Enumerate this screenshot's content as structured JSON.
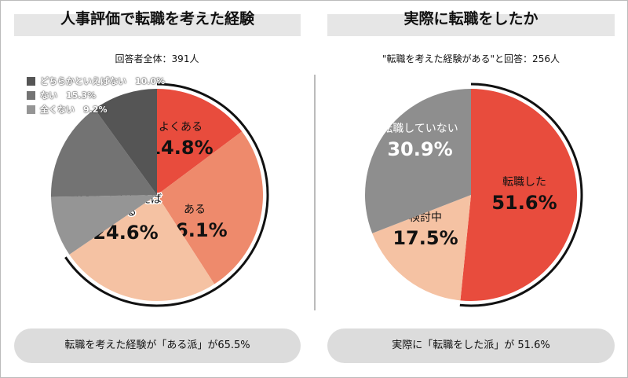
{
  "left": {
    "title": "人事評価で転職を考えた経験",
    "subtitle": "回答者全体：391人",
    "summary": "転職を考えた経験が「ある派」が65.5%"
  },
  "right": {
    "title": "実際に転職をしたか",
    "subtitle": "\"転職を考えた経験がある\"と回答：256人",
    "summary": "実際に「転職をした派」が 51.6%"
  },
  "chart_data": [
    {
      "type": "pie",
      "title": "人事評価で転職を考えた経験",
      "slices": [
        {
          "label": "よくある",
          "value": 14.8,
          "display": "14.8%",
          "color": "#e84c3d"
        },
        {
          "label": "ある",
          "value": 26.1,
          "display": "26.1%",
          "color": "#ee8a6c"
        },
        {
          "label": "どちらかといえば\nある",
          "value": 24.6,
          "display": "24.6%",
          "color": "#f5c2a3"
        },
        {
          "label": "全くない",
          "value": 9.2,
          "display": "9.2%",
          "color": "#959595"
        },
        {
          "label": "ない",
          "value": 15.3,
          "display": "15.3%",
          "color": "#737373"
        },
        {
          "label": "どちらかといえばない",
          "value": 10.0,
          "display": "10.0%",
          "color": "#555555"
        }
      ],
      "legend": [
        {
          "label": "どちらかといえばない",
          "display": "10.0%",
          "color": "#555555"
        },
        {
          "label": "ない",
          "display": "15.3%",
          "color": "#737373"
        },
        {
          "label": "全くない",
          "display": "9.2%",
          "color": "#959595"
        }
      ],
      "legend_position": "top-left",
      "highlight_arc_percent": 65.5
    },
    {
      "type": "pie",
      "title": "実際に転職をしたか",
      "slices": [
        {
          "label": "転職した",
          "value": 51.6,
          "display": "51.6%",
          "color": "#e84c3d"
        },
        {
          "label": "検討中",
          "value": 17.5,
          "display": "17.5%",
          "color": "#f5c2a3"
        },
        {
          "label": "転職していない",
          "value": 30.9,
          "display": "30.9%",
          "color": "#8e8e8e"
        }
      ],
      "highlight_arc_percent": 51.6
    }
  ]
}
